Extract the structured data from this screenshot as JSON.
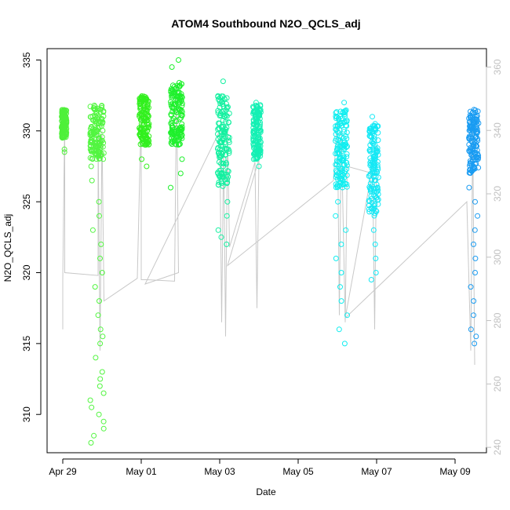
{
  "chart_data": {
    "type": "scatter",
    "title": "ATOM4 Southbound N2O_QCLS_adj",
    "xlabel": "Date",
    "ylabel": "N2O_QCLS_adj",
    "x_ticks": [
      {
        "label": "Apr 29",
        "value": 0
      },
      {
        "label": "May 01",
        "value": 2
      },
      {
        "label": "May 03",
        "value": 4
      },
      {
        "label": "May 05",
        "value": 6
      },
      {
        "label": "May 07",
        "value": 8
      },
      {
        "label": "May 09",
        "value": 10
      }
    ],
    "xlim": [
      -0.4,
      10.8
    ],
    "ylim": [
      307.3,
      335.8
    ],
    "y_ticks": [
      310,
      315,
      320,
      325,
      330,
      335
    ],
    "y2_ticks": [
      240,
      260,
      280,
      300,
      320,
      340,
      360
    ],
    "y2lim": [
      238.3,
      365.8
    ],
    "grid": false,
    "series": [
      {
        "color": "#4ff03a",
        "x_range": [
          -0.03,
          0.1
        ],
        "low": 329.5,
        "high": 331.5,
        "outliers": [
          328.7,
          328.5
        ]
      },
      {
        "color": "#52f540",
        "x_range": [
          0.7,
          1.05
        ],
        "low": 328.0,
        "high": 331.8,
        "outliers": [
          327.5,
          326.5,
          325.0,
          324.0,
          323.0,
          322.0,
          321.0,
          320.0,
          319.0,
          318.0,
          317.0,
          316.0,
          315.5,
          315.0,
          314.0,
          313.0,
          312.5,
          312.0,
          311.5,
          311.0,
          310.5,
          310.0,
          309.5,
          309.0,
          308.5,
          308.0
        ]
      },
      {
        "color": "#32f01e",
        "x_range": [
          1.95,
          2.2
        ],
        "low": 329.0,
        "high": 332.5,
        "outliers": [
          328.0,
          327.5
        ]
      },
      {
        "color": "#1ef02c",
        "x_range": [
          2.75,
          3.05
        ],
        "low": 329.0,
        "high": 333.5,
        "outliers": [
          335.0,
          334.5,
          328.0,
          327.0,
          326.0
        ]
      },
      {
        "color": "#14f0a0",
        "x_range": [
          3.95,
          4.25
        ],
        "low": 326.0,
        "high": 332.5,
        "outliers": [
          333.5,
          325.0,
          324.0,
          323.0,
          322.5,
          322.0
        ]
      },
      {
        "color": "#14f0b4",
        "x_range": [
          4.85,
          5.05
        ],
        "low": 328.0,
        "high": 332.0,
        "outliers": [
          327.5
        ]
      },
      {
        "color": "#10eef0",
        "x_range": [
          6.95,
          7.25
        ],
        "low": 326.0,
        "high": 331.5,
        "outliers": [
          332.0,
          325.0,
          324.0,
          323.0,
          322.0,
          321.0,
          320.0,
          319.0,
          318.0,
          317.0,
          316.0,
          315.0
        ]
      },
      {
        "color": "#14e8f5",
        "x_range": [
          7.8,
          8.05
        ],
        "low": 324.0,
        "high": 330.5,
        "outliers": [
          331.0,
          323.0,
          322.0,
          321.0,
          320.0,
          319.5
        ]
      },
      {
        "color": "#1a9cf2",
        "x_range": [
          10.35,
          10.6
        ],
        "low": 327.0,
        "high": 331.5,
        "outliers": [
          326.0,
          325.0,
          324.0,
          323.0,
          322.0,
          321.0,
          320.0,
          319.0,
          318.0,
          317.0,
          316.0,
          315.5,
          315.0
        ]
      }
    ],
    "altitude_trace": {
      "color": "#c8c8c8",
      "points": [
        [
          0.0,
          316
        ],
        [
          0.0,
          319.5
        ],
        [
          0.05,
          331
        ],
        [
          0.05,
          320
        ],
        [
          0.9,
          319.8
        ],
        [
          0.9,
          330
        ],
        [
          0.95,
          314.5
        ],
        [
          1.0,
          330
        ],
        [
          1.05,
          318
        ],
        [
          1.9,
          319.6
        ],
        [
          2.0,
          331.5
        ],
        [
          2.0,
          319.5
        ],
        [
          2.15,
          319.5
        ],
        [
          2.85,
          319.4
        ],
        [
          2.9,
          333
        ],
        [
          2.95,
          320
        ],
        [
          2.1,
          319.2
        ],
        [
          4.0,
          330
        ],
        [
          4.05,
          316.5
        ],
        [
          4.1,
          329
        ],
        [
          4.15,
          315.5
        ],
        [
          4.2,
          330
        ],
        [
          4.25,
          321.8
        ],
        [
          4.9,
          327.8
        ],
        [
          4.95,
          317.5
        ],
        [
          5.0,
          328
        ],
        [
          4.2,
          320.5
        ],
        [
          6.9,
          326.5
        ],
        [
          7.0,
          331
        ],
        [
          7.05,
          317
        ],
        [
          7.1,
          330
        ],
        [
          7.2,
          316.5
        ],
        [
          7.25,
          327.5
        ],
        [
          7.9,
          327.0
        ],
        [
          7.95,
          316.0
        ],
        [
          8.0,
          329
        ],
        [
          7.2,
          316.8
        ],
        [
          10.3,
          325
        ],
        [
          10.4,
          314.5
        ],
        [
          10.45,
          330
        ],
        [
          10.5,
          313.5
        ]
      ]
    }
  }
}
